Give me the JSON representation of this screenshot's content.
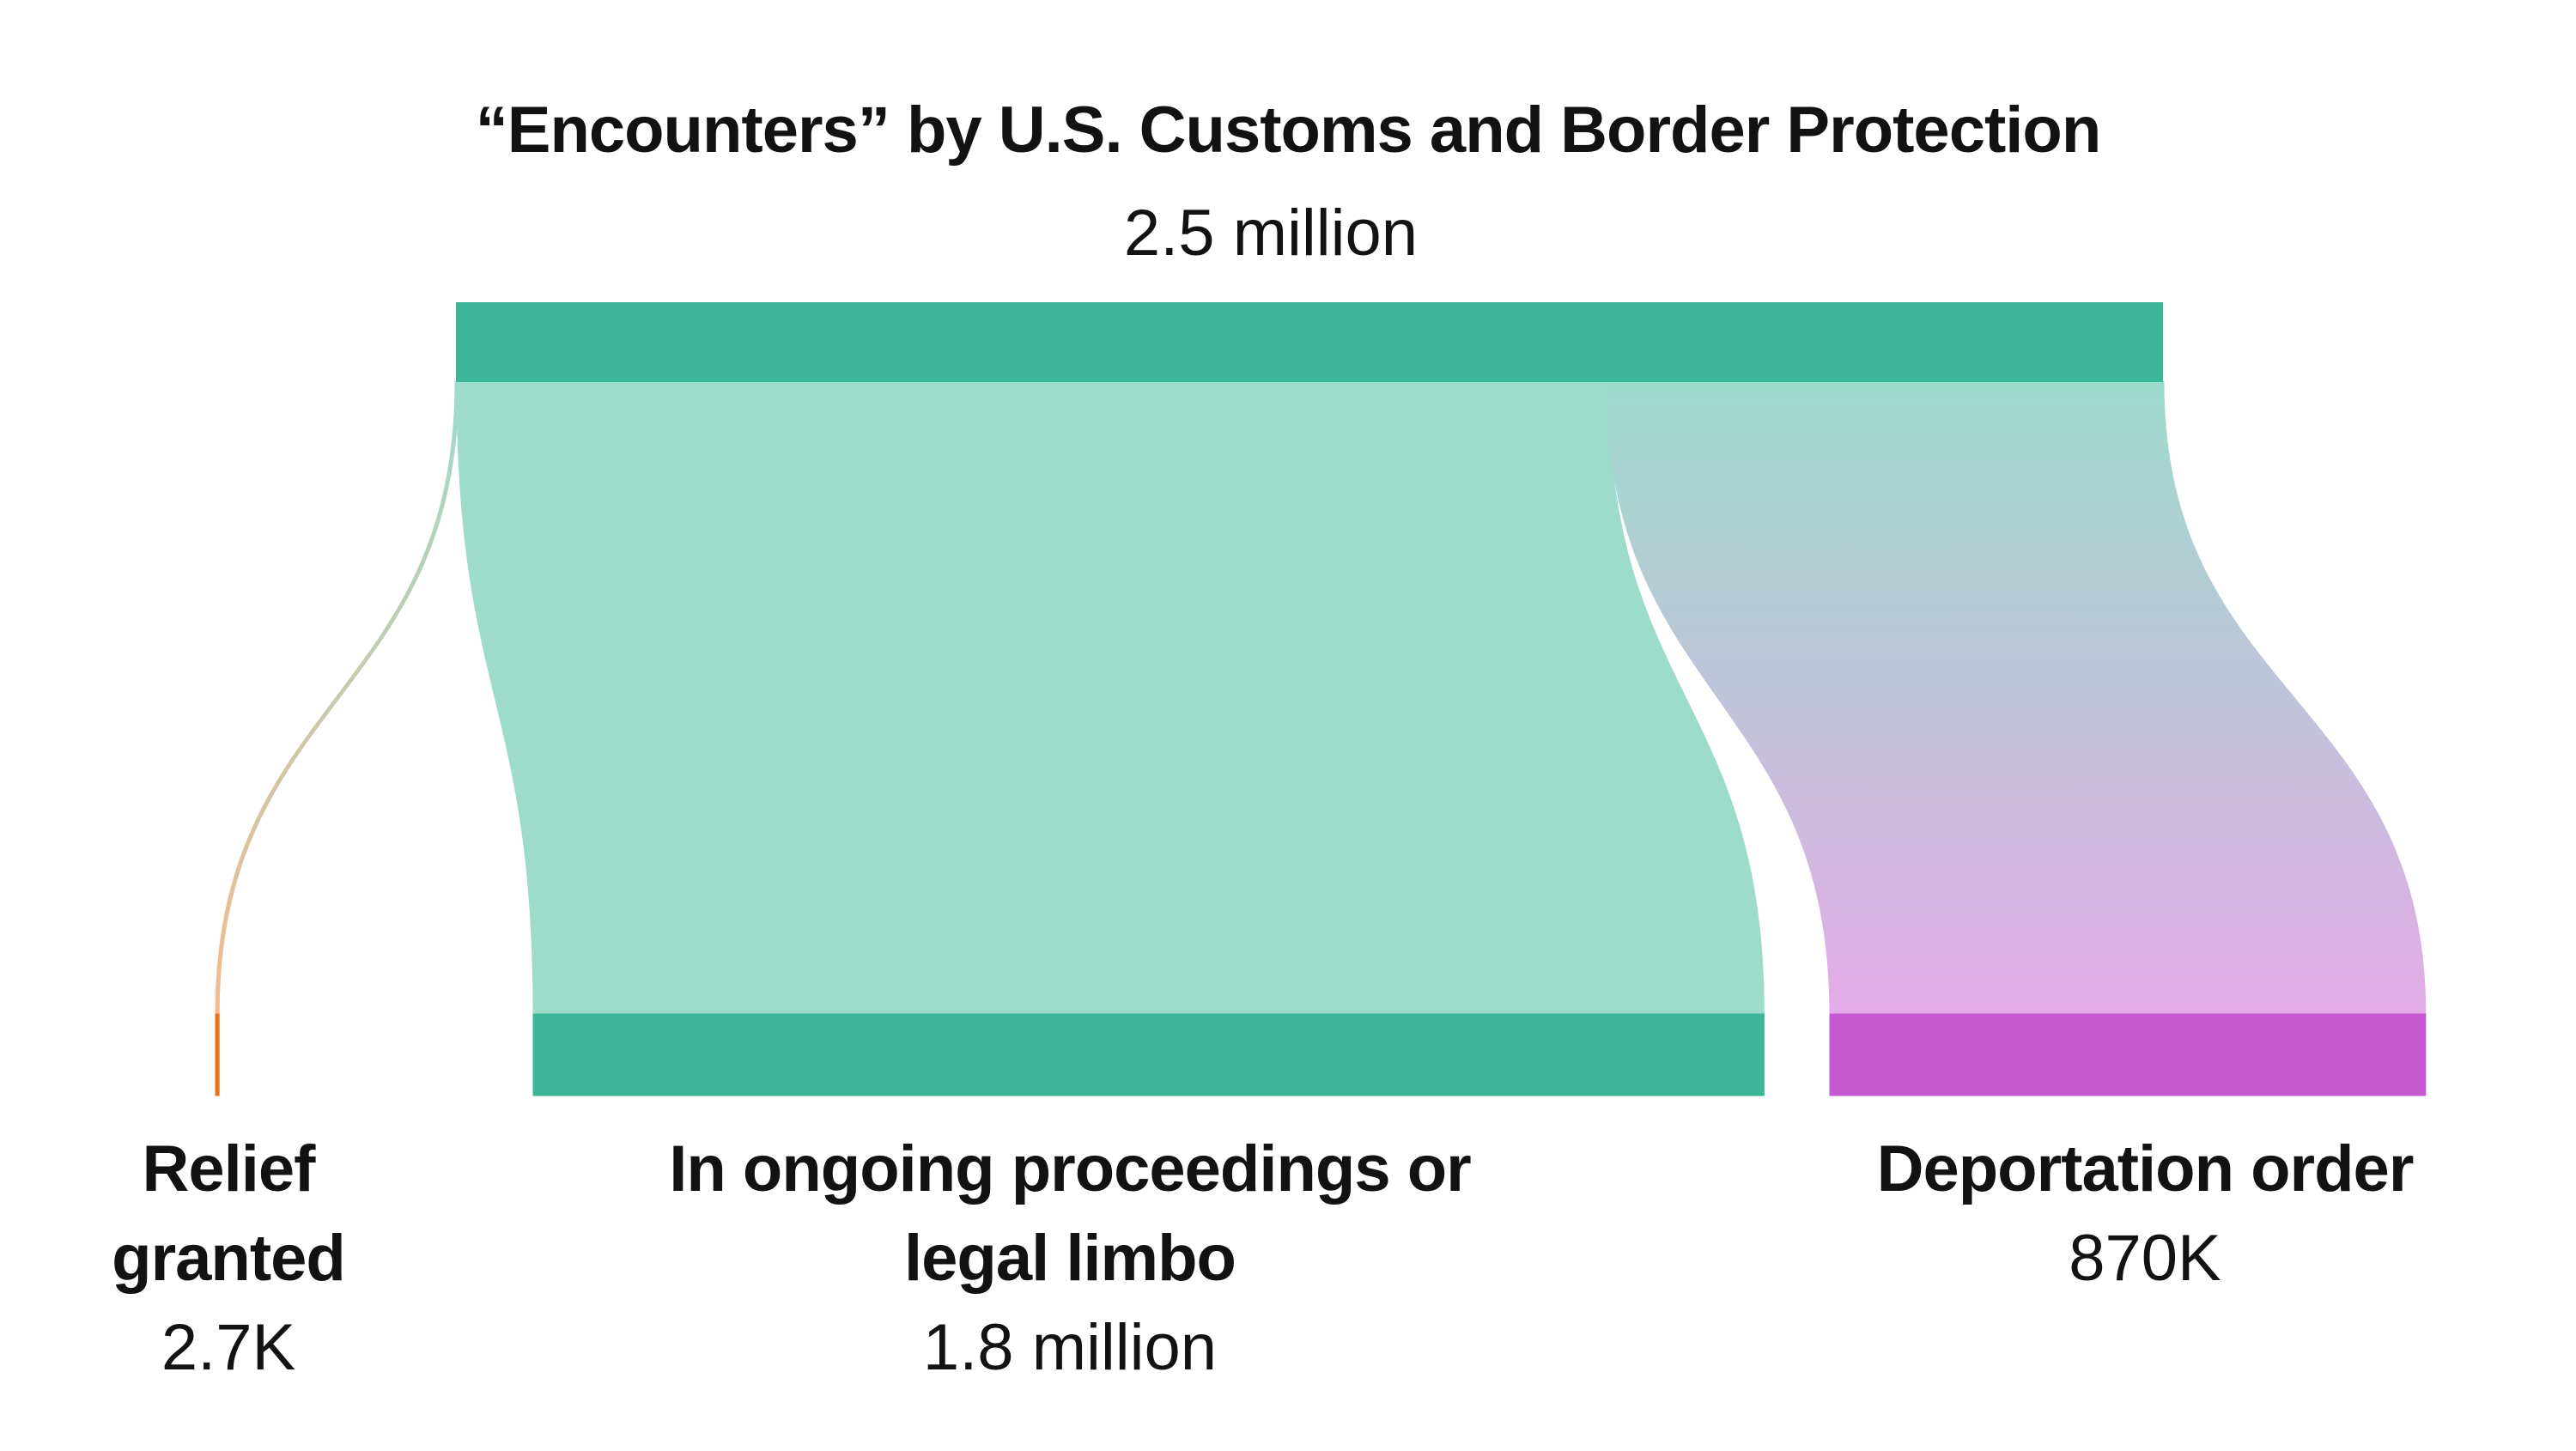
{
  "chart_data": {
    "type": "sankey",
    "source": {
      "name": "“Encounters” by U.S. Customs and Border Protection",
      "value": 2500000,
      "value_label": "2.5 million",
      "color": "#3bb697"
    },
    "targets": [
      {
        "name": "Relief granted",
        "value": 2700,
        "value_label": "2.7K",
        "color": "#e8731a"
      },
      {
        "name": "In ongoing proceedings or legal limbo",
        "value": 1800000,
        "value_label": "1.8 million",
        "color": "#3bb697"
      },
      {
        "name": "Deportation order",
        "value": 870000,
        "value_label": "870K",
        "color": "#c659d1"
      }
    ]
  }
}
